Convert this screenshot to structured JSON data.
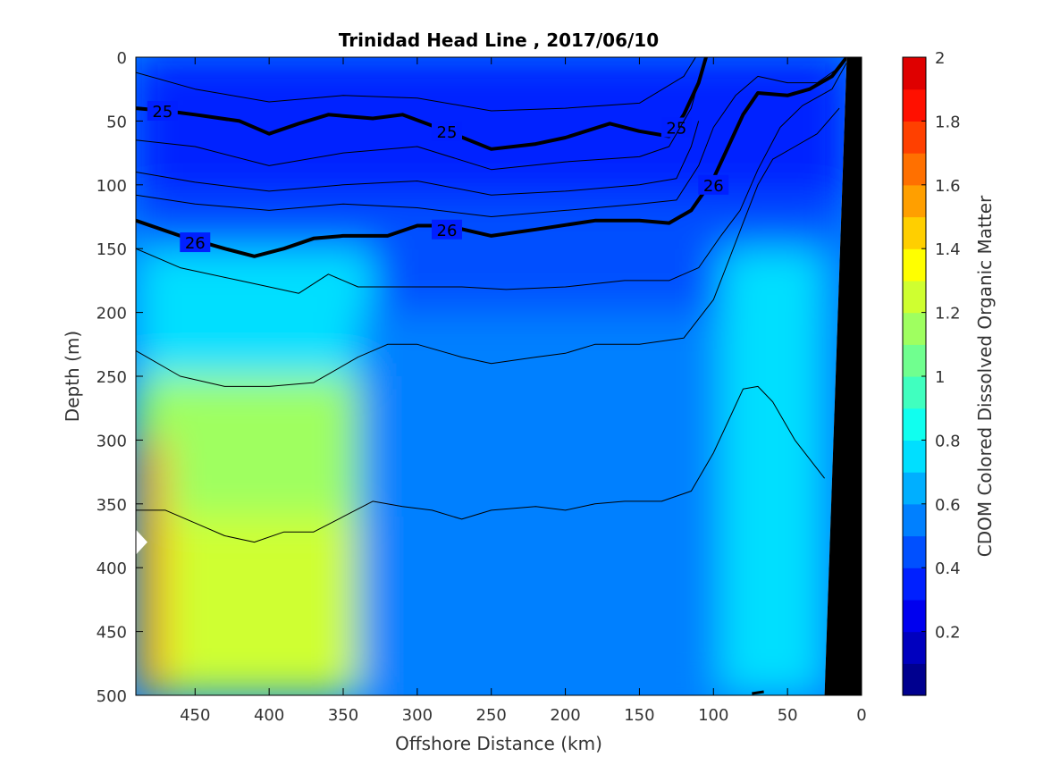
{
  "chart_data": {
    "type": "heatmap",
    "title": "Trinidad Head Line , 2017/06/10",
    "xlabel": "Offshore Distance (km)",
    "ylabel": "Depth (m)",
    "colorbar_label": "CDOM Colored Dissolved Organic Matter",
    "x_reversed": true,
    "y_reversed": true,
    "xlim": [
      490,
      0
    ],
    "ylim": [
      0,
      500
    ],
    "x_ticks": [
      450,
      400,
      350,
      300,
      250,
      200,
      150,
      100,
      50,
      0
    ],
    "y_ticks": [
      0,
      50,
      100,
      150,
      200,
      250,
      300,
      350,
      400,
      450,
      500
    ],
    "colorbar_range": [
      0,
      2
    ],
    "colorbar_ticks": [
      0.2,
      0.4,
      0.6,
      0.8,
      1,
      1.2,
      1.4,
      1.6,
      1.8,
      2
    ],
    "colormap": "jet",
    "colorbar_steps": 20,
    "colorbar_colors": [
      "#00008f",
      "#0000bf",
      "#0000ef",
      "#0020ff",
      "#0050ff",
      "#0080ff",
      "#00afff",
      "#00dfff",
      "#10ffef",
      "#40ffbf",
      "#70ff8f",
      "#9fff60",
      "#cfff30",
      "#ffff00",
      "#ffcf00",
      "#ff9f00",
      "#ff7000",
      "#ff4000",
      "#ff1000",
      "#df0000"
    ],
    "regions": [
      {
        "name": "surface-layer",
        "x_from": 490,
        "x_to": 10,
        "depth_from": 0,
        "depth_to": 110,
        "value": 0.3
      },
      {
        "name": "upper-layer",
        "x_from": 490,
        "x_to": 15,
        "depth_from": 110,
        "depth_to": 200,
        "value": 0.45
      },
      {
        "name": "offshore-upper",
        "x_from": 490,
        "x_to": 330,
        "depth_from": 150,
        "depth_to": 250,
        "value": 0.75
      },
      {
        "name": "mid-layer",
        "x_from": 340,
        "x_to": 25,
        "depth_from": 200,
        "depth_to": 500,
        "value": 0.55
      },
      {
        "name": "offshore-mid",
        "x_from": 490,
        "x_to": 340,
        "depth_from": 250,
        "depth_to": 360,
        "value": 1.1
      },
      {
        "name": "offshore-deep",
        "x_from": 490,
        "x_to": 340,
        "depth_from": 360,
        "depth_to": 500,
        "value": 1.25
      },
      {
        "name": "offshore-edge-max",
        "x_from": 490,
        "x_to": 470,
        "depth_from": 300,
        "depth_to": 500,
        "value": 1.55
      },
      {
        "name": "nearshore-column",
        "x_from": 95,
        "x_to": 25,
        "depth_from": 150,
        "depth_to": 500,
        "value": 0.7
      }
    ],
    "contours": [
      {
        "label": "25",
        "major": true,
        "points": [
          [
            490,
            40
          ],
          [
            470,
            42
          ],
          [
            450,
            45
          ],
          [
            420,
            50
          ],
          [
            400,
            60
          ],
          [
            380,
            52
          ],
          [
            360,
            45
          ],
          [
            330,
            48
          ],
          [
            310,
            45
          ],
          [
            280,
            58
          ],
          [
            250,
            72
          ],
          [
            220,
            68
          ],
          [
            200,
            63
          ],
          [
            170,
            52
          ],
          [
            150,
            58
          ],
          [
            130,
            62
          ],
          [
            120,
            45
          ],
          [
            110,
            20
          ],
          [
            105,
            0
          ]
        ],
        "label_positions": [
          [
            472,
            42
          ],
          [
            280,
            58
          ],
          [
            125,
            55
          ]
        ]
      },
      {
        "label": "26",
        "major": true,
        "points": [
          [
            490,
            128
          ],
          [
            460,
            140
          ],
          [
            430,
            150
          ],
          [
            410,
            156
          ],
          [
            390,
            150
          ],
          [
            370,
            142
          ],
          [
            350,
            140
          ],
          [
            320,
            140
          ],
          [
            300,
            132
          ],
          [
            280,
            132
          ],
          [
            250,
            140
          ],
          [
            220,
            135
          ],
          [
            180,
            128
          ],
          [
            150,
            128
          ],
          [
            130,
            130
          ],
          [
            115,
            120
          ],
          [
            100,
            95
          ],
          [
            90,
            70
          ],
          [
            80,
            45
          ],
          [
            70,
            28
          ],
          [
            50,
            30
          ],
          [
            35,
            25
          ],
          [
            20,
            15
          ],
          [
            10,
            0
          ]
        ],
        "label_positions": [
          [
            450,
            145
          ],
          [
            280,
            135
          ],
          [
            100,
            100
          ]
        ]
      },
      {
        "label": "",
        "major": false,
        "points": [
          [
            490,
            12
          ],
          [
            450,
            25
          ],
          [
            400,
            35
          ],
          [
            350,
            30
          ],
          [
            300,
            32
          ],
          [
            250,
            42
          ],
          [
            200,
            40
          ],
          [
            150,
            36
          ],
          [
            120,
            15
          ],
          [
            112,
            0
          ]
        ]
      },
      {
        "label": "",
        "major": false,
        "points": [
          [
            490,
            65
          ],
          [
            450,
            70
          ],
          [
            400,
            85
          ],
          [
            350,
            75
          ],
          [
            300,
            70
          ],
          [
            250,
            88
          ],
          [
            200,
            82
          ],
          [
            150,
            78
          ],
          [
            130,
            70
          ],
          [
            115,
            40
          ],
          [
            108,
            10
          ]
        ]
      },
      {
        "label": "",
        "major": false,
        "points": [
          [
            490,
            90
          ],
          [
            450,
            98
          ],
          [
            400,
            105
          ],
          [
            350,
            100
          ],
          [
            300,
            97
          ],
          [
            250,
            108
          ],
          [
            200,
            105
          ],
          [
            150,
            100
          ],
          [
            125,
            95
          ],
          [
            115,
            70
          ],
          [
            110,
            50
          ]
        ]
      },
      {
        "label": "",
        "major": false,
        "points": [
          [
            490,
            108
          ],
          [
            450,
            115
          ],
          [
            400,
            120
          ],
          [
            350,
            115
          ],
          [
            300,
            118
          ],
          [
            250,
            125
          ],
          [
            200,
            120
          ],
          [
            150,
            115
          ],
          [
            125,
            112
          ],
          [
            110,
            85
          ],
          [
            100,
            55
          ],
          [
            85,
            30
          ],
          [
            70,
            15
          ],
          [
            50,
            20
          ],
          [
            30,
            20
          ],
          [
            15,
            8
          ]
        ]
      },
      {
        "label": "",
        "major": false,
        "points": [
          [
            490,
            150
          ],
          [
            460,
            165
          ],
          [
            420,
            175
          ],
          [
            400,
            180
          ],
          [
            380,
            185
          ],
          [
            360,
            170
          ],
          [
            340,
            180
          ],
          [
            300,
            180
          ],
          [
            270,
            180
          ],
          [
            240,
            182
          ],
          [
            200,
            180
          ],
          [
            160,
            175
          ],
          [
            130,
            175
          ],
          [
            110,
            165
          ],
          [
            95,
            140
          ],
          [
            82,
            120
          ],
          [
            70,
            88
          ],
          [
            55,
            55
          ],
          [
            40,
            38
          ],
          [
            20,
            25
          ],
          [
            8,
            0
          ]
        ]
      },
      {
        "label": "",
        "major": false,
        "points": [
          [
            490,
            230
          ],
          [
            460,
            250
          ],
          [
            430,
            258
          ],
          [
            400,
            258
          ],
          [
            370,
            255
          ],
          [
            340,
            235
          ],
          [
            320,
            225
          ],
          [
            300,
            225
          ],
          [
            270,
            235
          ],
          [
            250,
            240
          ],
          [
            220,
            235
          ],
          [
            200,
            232
          ],
          [
            180,
            225
          ],
          [
            150,
            225
          ],
          [
            120,
            220
          ],
          [
            100,
            190
          ],
          [
            90,
            160
          ],
          [
            80,
            130
          ],
          [
            70,
            100
          ],
          [
            60,
            80
          ],
          [
            45,
            70
          ],
          [
            30,
            60
          ],
          [
            15,
            40
          ]
        ]
      },
      {
        "label": "",
        "major": false,
        "points": [
          [
            490,
            355
          ],
          [
            470,
            355
          ],
          [
            450,
            365
          ],
          [
            430,
            375
          ],
          [
            410,
            380
          ],
          [
            390,
            372
          ],
          [
            370,
            372
          ],
          [
            350,
            360
          ],
          [
            330,
            348
          ],
          [
            310,
            352
          ],
          [
            290,
            355
          ],
          [
            270,
            362
          ],
          [
            250,
            355
          ],
          [
            220,
            352
          ],
          [
            200,
            355
          ],
          [
            180,
            350
          ],
          [
            160,
            348
          ],
          [
            135,
            348
          ],
          [
            115,
            340
          ],
          [
            100,
            310
          ],
          [
            90,
            285
          ],
          [
            80,
            260
          ],
          [
            70,
            258
          ],
          [
            60,
            270
          ],
          [
            45,
            300
          ],
          [
            35,
            315
          ],
          [
            25,
            330
          ]
        ]
      }
    ],
    "bathymetry": {
      "points": [
        [
          10,
          0
        ],
        [
          25,
          500
        ],
        [
          0,
          500
        ],
        [
          0,
          0
        ]
      ],
      "color": "#000000"
    },
    "bathymetry_edge": {
      "points": [
        [
          2,
          0
        ],
        [
          10,
          0
        ],
        [
          25,
          500
        ],
        [
          22,
          500
        ]
      ],
      "color": "#ffffff"
    },
    "missing_value_marker": {
      "x": 487,
      "depth": 380,
      "color": "#ffffff"
    },
    "seafloor_tick": {
      "x": 70,
      "depth": 500
    }
  }
}
